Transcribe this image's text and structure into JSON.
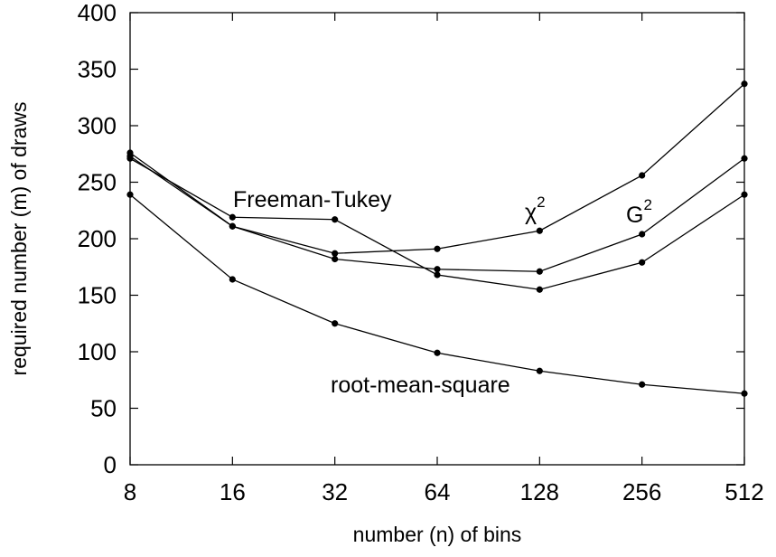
{
  "chart_data": {
    "type": "line",
    "title": "",
    "xlabel": "number (n) of bins",
    "ylabel": "required number (m) of draws",
    "x_scale": "log2",
    "x": [
      8,
      16,
      32,
      64,
      128,
      256,
      512
    ],
    "x_tick_labels": [
      "8",
      "16",
      "32",
      "64",
      "128",
      "256",
      "512"
    ],
    "ylim": [
      0,
      400
    ],
    "y_ticks": [
      0,
      50,
      100,
      150,
      200,
      250,
      300,
      350,
      400
    ],
    "y_tick_labels": [
      "0",
      "50",
      "100",
      "150",
      "200",
      "250",
      "300",
      "350",
      "400"
    ],
    "grid": false,
    "series": [
      {
        "name": "χ2",
        "values": [
          276,
          211,
          187,
          191,
          207,
          256,
          337
        ]
      },
      {
        "name": "G2",
        "values": [
          273,
          211,
          182,
          173,
          171,
          204,
          271
        ]
      },
      {
        "name": "Freeman-Tukey",
        "values": [
          271,
          219,
          217,
          168,
          155,
          179,
          239
        ]
      },
      {
        "name": "root-mean-square",
        "values": [
          239,
          164,
          125,
          99,
          83,
          71,
          63
        ]
      }
    ],
    "annotations": {
      "chi2_base": "χ",
      "chi2_sup": "2",
      "g2_base": "G",
      "g2_sup": "2",
      "freeman_tukey": "Freeman-Tukey",
      "rms": "root-mean-square"
    },
    "line_color": "#000000"
  }
}
